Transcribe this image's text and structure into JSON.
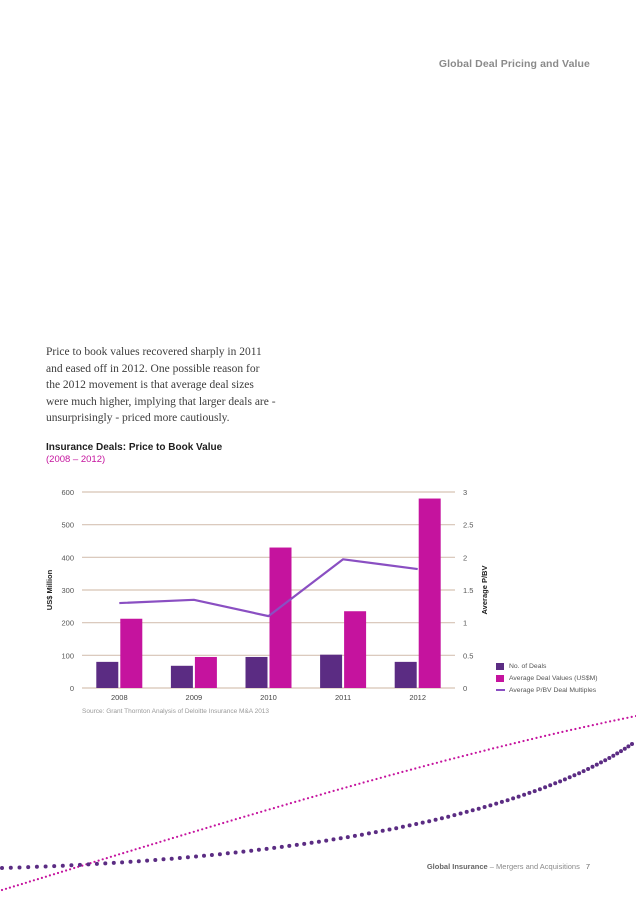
{
  "header": {
    "title": "Global Deal Pricing and Value"
  },
  "intro": {
    "text": "Price to book values recovered sharply in 2011 and eased off in 2012. One possible reason for the 2012 movement is that average deal sizes were much higher, implying that larger deals are - unsurprisingly - priced more cautiously."
  },
  "colors": {
    "deals": "#5b2c83",
    "values": "#c5139e",
    "multiples": "#8a4fc2",
    "grid": "#d6c3b5",
    "dots_purple": "#5b2c83",
    "dots_pink": "#c5139e"
  },
  "chart_data": {
    "type": "bar",
    "title": "Insurance Deals: Price to Book Value",
    "subtitle": "(2008 – 2012)",
    "categories": [
      "2008",
      "2009",
      "2010",
      "2011",
      "2012"
    ],
    "ylabel": "US$ Million",
    "y2label": "Average P/BV",
    "ylim": [
      0,
      600
    ],
    "y2lim": [
      0,
      3
    ],
    "yticks": [
      "0",
      "100",
      "200",
      "300",
      "400",
      "500",
      "600"
    ],
    "y2ticks": [
      "0",
      "0.5",
      "1",
      "1.5",
      "2",
      "2.5",
      "3"
    ],
    "grid": true,
    "legend_position": "bottom-right",
    "series": [
      {
        "name": "No. of Deals",
        "type": "bar",
        "axis": "left",
        "values": [
          80,
          68,
          95,
          102,
          80
        ]
      },
      {
        "name": "Average Deal Values (US$M)",
        "type": "bar",
        "axis": "left",
        "values": [
          212,
          95,
          430,
          235,
          580
        ]
      },
      {
        "name": "Average P/BV Deal Multiples",
        "type": "line",
        "axis": "right",
        "values": [
          1.3,
          1.35,
          1.1,
          1.97,
          1.82
        ]
      }
    ],
    "source": "Source: Grant Thornton Analysis of Deloitte Insurance M&A 2013"
  },
  "footer": {
    "brand": "Global Insurance",
    "separator": " – ",
    "section": "Mergers and Acquisitions",
    "page": "7"
  }
}
